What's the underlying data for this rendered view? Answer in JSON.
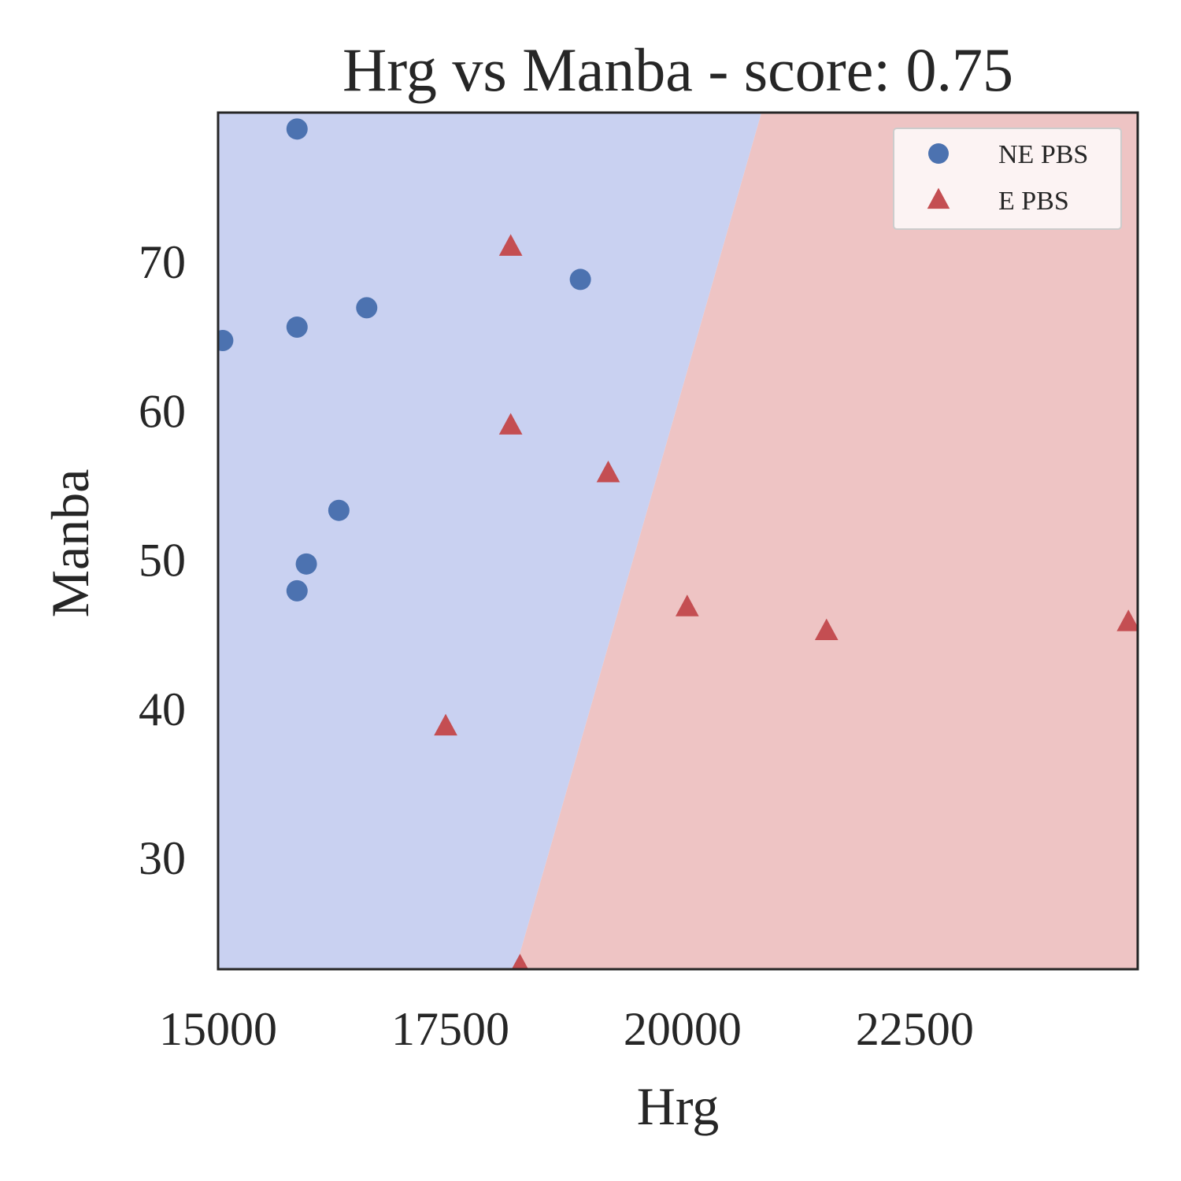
{
  "chart_data": {
    "type": "scatter",
    "title": "Hrg vs Manba - score: 0.75",
    "xlabel": "Hrg",
    "ylabel": "Manba",
    "xlim": [
      15000,
      24900
    ],
    "ylim": [
      22.5,
      80
    ],
    "xticks": [
      15000,
      17500,
      20000,
      22500
    ],
    "yticks": [
      30,
      40,
      50,
      60,
      70
    ],
    "grid": false,
    "legend_position": "top-right",
    "decision_regions": {
      "classes": [
        "NE PBS",
        "E PBS"
      ],
      "boundary": [
        [
          18200,
          22.5
        ],
        [
          20850,
          80
        ]
      ],
      "colors": {
        "NE PBS": "#c9d1f1",
        "E PBS": "#eec4c4"
      }
    },
    "series": [
      {
        "name": "NE PBS",
        "marker": "circle",
        "color": "#4c72b0",
        "points": [
          [
            15050,
            64.7
          ],
          [
            15850,
            78.9
          ],
          [
            15850,
            65.6
          ],
          [
            16600,
            66.9
          ],
          [
            18900,
            68.8
          ],
          [
            16300,
            53.3
          ],
          [
            15950,
            49.7
          ],
          [
            15850,
            47.9
          ]
        ]
      },
      {
        "name": "E PBS",
        "marker": "triangle",
        "color": "#c44e52",
        "points": [
          [
            18150,
            71.0
          ],
          [
            18150,
            59.0
          ],
          [
            19200,
            55.8
          ],
          [
            17450,
            38.8
          ],
          [
            20050,
            46.8
          ],
          [
            21550,
            45.2
          ],
          [
            24800,
            45.8
          ],
          [
            18250,
            22.7
          ]
        ]
      }
    ]
  }
}
